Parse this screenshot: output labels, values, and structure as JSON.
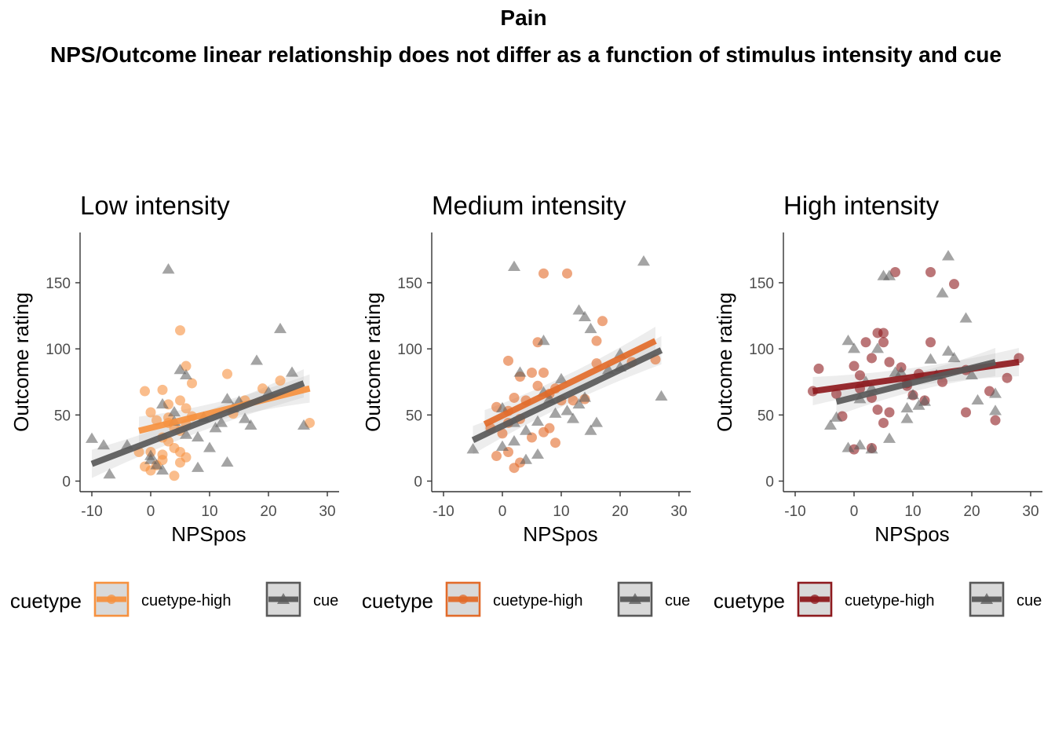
{
  "title": "Pain",
  "subtitle": "NPS/Outcome linear relationship does not differ as a function of stimulus intensity and cue",
  "chart_data": [
    {
      "type": "scatter",
      "title": "Low intensity",
      "xlabel": "NPSpos",
      "ylabel": "Outcome rating",
      "xlim": [
        -12,
        32
      ],
      "ylim": [
        -8,
        188
      ],
      "xticks": [
        "-10",
        "0",
        "10",
        "20",
        "30"
      ],
      "yticks": [
        "0",
        "50",
        "100",
        "150"
      ],
      "grid": false,
      "legend": {
        "title": "cuetype",
        "labels": [
          "cuetype-high",
          "cue"
        ],
        "position": "bottom"
      },
      "series": [
        {
          "name": "cuetype-high",
          "color": "#f6913f",
          "marker": "circle",
          "fit": {
            "x": [
              -2,
              27
            ],
            "y": [
              38,
              70
            ]
          },
          "points": [
            [
              -1,
              68
            ],
            [
              2,
              69
            ],
            [
              5,
              114
            ],
            [
              6,
              87
            ],
            [
              7,
              74
            ],
            [
              13,
              81
            ],
            [
              3,
              58
            ],
            [
              5,
              61
            ],
            [
              6,
              55
            ],
            [
              7,
              49
            ],
            [
              0,
              52
            ],
            [
              1,
              46
            ],
            [
              3,
              44
            ],
            [
              4,
              40
            ],
            [
              5,
              38
            ],
            [
              2,
              33
            ],
            [
              3,
              30
            ],
            [
              4,
              25
            ],
            [
              5,
              22
            ],
            [
              6,
              18
            ],
            [
              2,
              20
            ],
            [
              1,
              12
            ],
            [
              0,
              8
            ],
            [
              -1,
              11
            ],
            [
              4,
              4
            ],
            [
              5,
              14
            ],
            [
              2,
              16
            ],
            [
              0,
              22
            ],
            [
              3,
              48
            ],
            [
              6,
              43
            ],
            [
              14,
              51
            ],
            [
              16,
              61
            ],
            [
              19,
              70
            ],
            [
              22,
              76
            ],
            [
              27,
              44
            ],
            [
              -2,
              22
            ]
          ]
        },
        {
          "name": "cue",
          "color": "#595959",
          "marker": "triangle",
          "fit": {
            "x": [
              -10,
              26
            ],
            "y": [
              13,
              74
            ]
          },
          "points": [
            [
              -10,
              32
            ],
            [
              -8,
              27
            ],
            [
              -7,
              5
            ],
            [
              -4,
              27
            ],
            [
              0,
              19
            ],
            [
              1,
              12
            ],
            [
              2,
              8
            ],
            [
              3,
              160
            ],
            [
              4,
              52
            ],
            [
              6,
              80
            ],
            [
              5,
              84
            ],
            [
              8,
              33
            ],
            [
              9,
              48
            ],
            [
              10,
              25
            ],
            [
              11,
              40
            ],
            [
              12,
              44
            ],
            [
              13,
              62
            ],
            [
              14,
              55
            ],
            [
              15,
              60
            ],
            [
              16,
              47
            ],
            [
              17,
              42
            ],
            [
              18,
              91
            ],
            [
              20,
              67
            ],
            [
              22,
              115
            ],
            [
              24,
              82
            ],
            [
              26,
              42
            ],
            [
              13,
              14
            ],
            [
              8,
              10
            ],
            [
              2,
              58
            ],
            [
              4,
              45
            ],
            [
              6,
              35
            ],
            [
              0,
              16
            ]
          ]
        }
      ]
    },
    {
      "type": "scatter",
      "title": "Medium intensity",
      "xlabel": "NPSpos",
      "ylabel": "Outcome rating",
      "xlim": [
        -12,
        32
      ],
      "ylim": [
        -8,
        188
      ],
      "xticks": [
        "-10",
        "0",
        "10",
        "20",
        "30"
      ],
      "yticks": [
        "0",
        "50",
        "100",
        "150"
      ],
      "grid": false,
      "legend": {
        "title": "cuetype",
        "labels": [
          "cuetype-high",
          "cue"
        ],
        "position": "bottom"
      },
      "series": [
        {
          "name": "cuetype-high",
          "color": "#e26b2a",
          "marker": "circle",
          "fit": {
            "x": [
              -3,
              26
            ],
            "y": [
              43,
              106
            ]
          },
          "points": [
            [
              7,
              157
            ],
            [
              11,
              157
            ],
            [
              6,
              105
            ],
            [
              16,
              106
            ],
            [
              17,
              121
            ],
            [
              1,
              91
            ],
            [
              3,
              79
            ],
            [
              5,
              82
            ],
            [
              7,
              82
            ],
            [
              9,
              70
            ],
            [
              -1,
              56
            ],
            [
              1,
              53
            ],
            [
              2,
              63
            ],
            [
              4,
              61
            ],
            [
              6,
              72
            ],
            [
              8,
              66
            ],
            [
              10,
              61
            ],
            [
              12,
              61
            ],
            [
              16,
              89
            ],
            [
              22,
              90
            ],
            [
              26,
              92
            ],
            [
              -2,
              40
            ],
            [
              0,
              36
            ],
            [
              1,
              44
            ],
            [
              3,
              47
            ],
            [
              5,
              33
            ],
            [
              7,
              37
            ],
            [
              9,
              29
            ],
            [
              -1,
              19
            ],
            [
              1,
              22
            ],
            [
              2,
              10
            ],
            [
              3,
              14
            ],
            [
              8,
              40
            ],
            [
              14,
              62
            ]
          ]
        },
        {
          "name": "cue",
          "color": "#595959",
          "marker": "triangle",
          "fit": {
            "x": [
              -5,
              27
            ],
            "y": [
              31,
              99
            ]
          },
          "points": [
            [
              -5,
              24
            ],
            [
              2,
              162
            ],
            [
              7,
              106
            ],
            [
              13,
              129
            ],
            [
              14,
              124
            ],
            [
              15,
              115
            ],
            [
              20,
              96
            ],
            [
              24,
              166
            ],
            [
              27,
              64
            ],
            [
              0,
              55
            ],
            [
              2,
              44
            ],
            [
              4,
              38
            ],
            [
              6,
              45
            ],
            [
              8,
              62
            ],
            [
              10,
              77
            ],
            [
              11,
              53
            ],
            [
              12,
              47
            ],
            [
              13,
              58
            ],
            [
              14,
              63
            ],
            [
              16,
              44
            ],
            [
              18,
              84
            ],
            [
              20,
              86
            ],
            [
              6,
              20
            ],
            [
              4,
              16
            ],
            [
              2,
              30
            ],
            [
              0,
              26
            ],
            [
              3,
              82
            ],
            [
              7,
              67
            ],
            [
              9,
              51
            ],
            [
              15,
              38
            ]
          ]
        }
      ]
    },
    {
      "type": "scatter",
      "title": "High intensity",
      "xlabel": "NPSpos",
      "ylabel": "Outcome rating",
      "xlim": [
        -12,
        32
      ],
      "ylim": [
        -8,
        188
      ],
      "xticks": [
        "-10",
        "0",
        "10",
        "20",
        "30"
      ],
      "yticks": [
        "0",
        "50",
        "100",
        "150"
      ],
      "grid": false,
      "legend": {
        "title": "cuetype",
        "labels": [
          "cuetype-high",
          "cue"
        ],
        "position": "bottom"
      },
      "series": [
        {
          "name": "cuetype-high",
          "color": "#8e1a1e",
          "marker": "circle",
          "fit": {
            "x": [
              -7,
              28
            ],
            "y": [
              68,
              90
            ]
          },
          "points": [
            [
              -7,
              68
            ],
            [
              -6,
              85
            ],
            [
              -3,
              66
            ],
            [
              -2,
              49
            ],
            [
              0,
              87
            ],
            [
              1,
              80
            ],
            [
              2,
              105
            ],
            [
              3,
              93
            ],
            [
              4,
              112
            ],
            [
              5,
              105
            ],
            [
              5,
              112
            ],
            [
              6,
              90
            ],
            [
              7,
              158
            ],
            [
              8,
              86
            ],
            [
              9,
              74
            ],
            [
              10,
              65
            ],
            [
              11,
              81
            ],
            [
              12,
              61
            ],
            [
              13,
              158
            ],
            [
              13,
              105
            ],
            [
              15,
              75
            ],
            [
              17,
              149
            ],
            [
              19,
              52
            ],
            [
              19,
              84
            ],
            [
              23,
              68
            ],
            [
              24,
              46
            ],
            [
              26,
              78
            ],
            [
              28,
              93
            ],
            [
              3,
              63
            ],
            [
              4,
              54
            ],
            [
              6,
              52
            ],
            [
              1,
              70
            ],
            [
              3,
              25
            ],
            [
              0,
              24
            ],
            [
              5,
              44
            ],
            [
              9,
              72
            ]
          ]
        },
        {
          "name": "cue",
          "color": "#595959",
          "marker": "triangle",
          "fit": {
            "x": [
              -3,
              24
            ],
            "y": [
              60,
              90
            ]
          },
          "points": [
            [
              -4,
              42
            ],
            [
              -3,
              48
            ],
            [
              -1,
              106
            ],
            [
              0,
              100
            ],
            [
              1,
              62
            ],
            [
              2,
              75
            ],
            [
              3,
              70
            ],
            [
              4,
              100
            ],
            [
              5,
              155
            ],
            [
              6,
              155
            ],
            [
              7,
              82
            ],
            [
              8,
              82
            ],
            [
              9,
              55
            ],
            [
              10,
              65
            ],
            [
              11,
              57
            ],
            [
              12,
              60
            ],
            [
              13,
              92
            ],
            [
              14,
              80
            ],
            [
              15,
              142
            ],
            [
              16,
              170
            ],
            [
              16,
              98
            ],
            [
              17,
              93
            ],
            [
              19,
              123
            ],
            [
              20,
              80
            ],
            [
              21,
              61
            ],
            [
              24,
              66
            ],
            [
              24,
              53
            ],
            [
              1,
              27
            ],
            [
              3,
              24
            ],
            [
              6,
              32
            ],
            [
              9,
              47
            ],
            [
              -1,
              25
            ]
          ]
        }
      ]
    }
  ]
}
